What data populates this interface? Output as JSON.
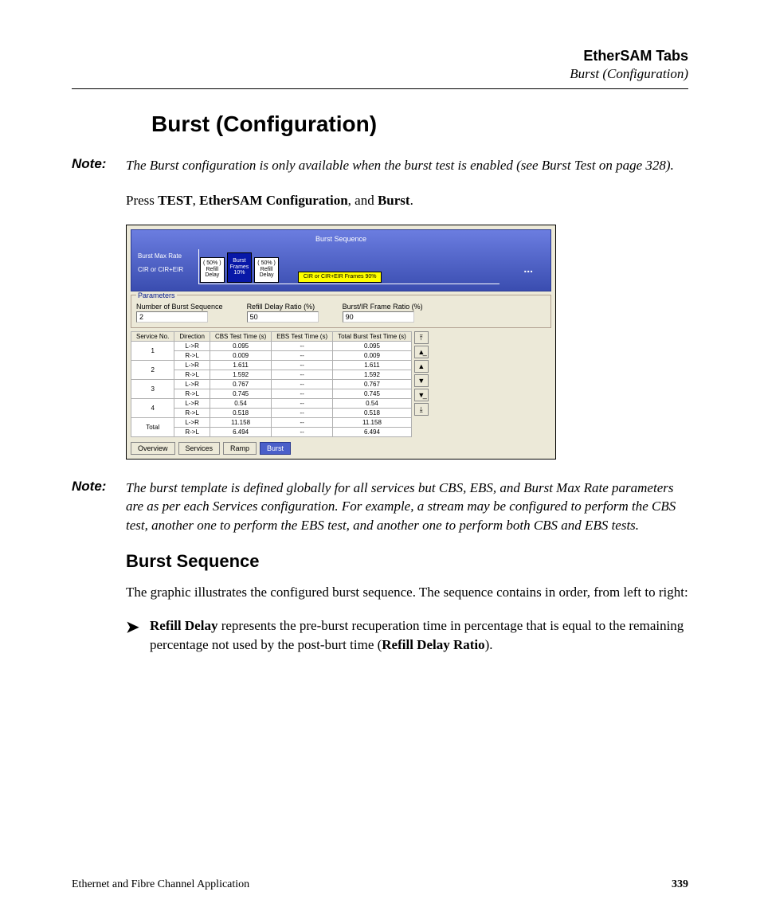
{
  "header": {
    "title": "EtherSAM Tabs",
    "subtitle": "Burst (Configuration)"
  },
  "main_heading": "Burst (Configuration)",
  "note1": {
    "label": "Note:",
    "text_pre": "The Burst configuration is only available when the burst test is enabled (see ",
    "text_bold": "Burst Test",
    "text_mid": " on page 328",
    "text_post": ")."
  },
  "press_line": {
    "pre": "Press ",
    "b1": "TEST",
    "sep1": ", ",
    "b2": "EtherSAM Configuration",
    "sep2": ", and ",
    "b3": "Burst",
    "post": "."
  },
  "screenshot": {
    "panel_title": "Burst Sequence",
    "axis_top": "Burst Max Rate",
    "axis_bottom": "CIR or CIR+EIR",
    "box_refill1_a": "( 50% )",
    "box_refill1_b": "Refill",
    "box_refill1_c": "Delay",
    "box_burst_a": "Burst",
    "box_burst_b": "Frames",
    "box_burst_c": "10%",
    "box_refill2_a": "( 50% )",
    "box_refill2_b": "Refill",
    "box_refill2_c": "Delay",
    "box_yellow": "CIR or CIR+EIR Frames 90%",
    "dots": "...",
    "params_legend": "Parameters",
    "param1_label": "Number of Burst Sequence",
    "param1_value": "2",
    "param2_label": "Refill Delay Ratio (%)",
    "param2_value": "50",
    "param3_label": "Burst/IR Frame Ratio (%)",
    "param3_value": "90",
    "table": {
      "headers": [
        "Service No.",
        "Direction",
        "CBS Test Time (s)",
        "EBS Test Time (s)",
        "Total Burst Test Time (s)"
      ],
      "rows": [
        {
          "svc": "1",
          "d1": "L->R",
          "c1": "0.095",
          "e1": "--",
          "t1": "0.095",
          "d2": "R->L",
          "c2": "0.009",
          "e2": "--",
          "t2": "0.009"
        },
        {
          "svc": "2",
          "d1": "L->R",
          "c1": "1.611",
          "e1": "--",
          "t1": "1.611",
          "d2": "R->L",
          "c2": "1.592",
          "e2": "--",
          "t2": "1.592"
        },
        {
          "svc": "3",
          "d1": "L->R",
          "c1": "0.767",
          "e1": "--",
          "t1": "0.767",
          "d2": "R->L",
          "c2": "0.745",
          "e2": "--",
          "t2": "0.745"
        },
        {
          "svc": "4",
          "d1": "L->R",
          "c1": "0.54",
          "e1": "--",
          "t1": "0.54",
          "d2": "R->L",
          "c2": "0.518",
          "e2": "--",
          "t2": "0.518"
        }
      ],
      "total": {
        "svc": "Total",
        "d1": "L->R",
        "c1": "11.158",
        "e1": "--",
        "t1": "11.158",
        "d2": "R->L",
        "c2": "6.494",
        "e2": "--",
        "t2": "6.494"
      }
    },
    "tabs": [
      "Overview",
      "Services",
      "Ramp",
      "Burst"
    ],
    "active_tab": 3
  },
  "note2": {
    "label": "Note:",
    "text": "The burst template is defined globally for all services but CBS, EBS, and Burst Max Rate parameters are as per each Services configuration. For example, a stream may be configured to perform the CBS test, another one to perform the EBS test, and another one to perform both CBS and EBS tests."
  },
  "sub_heading": "Burst Sequence",
  "body2": "The graphic illustrates the configured burst sequence. The sequence contains in order, from left to right:",
  "bullet1": {
    "b1": "Refill Delay",
    "mid": " represents the pre-burst recuperation time in percentage that is equal to the remaining percentage not used by the post-burt time (",
    "b2": "Refill Delay Ratio",
    "post": ")."
  },
  "footer": {
    "left": "Ethernet and Fibre Channel Application",
    "page": "339"
  }
}
